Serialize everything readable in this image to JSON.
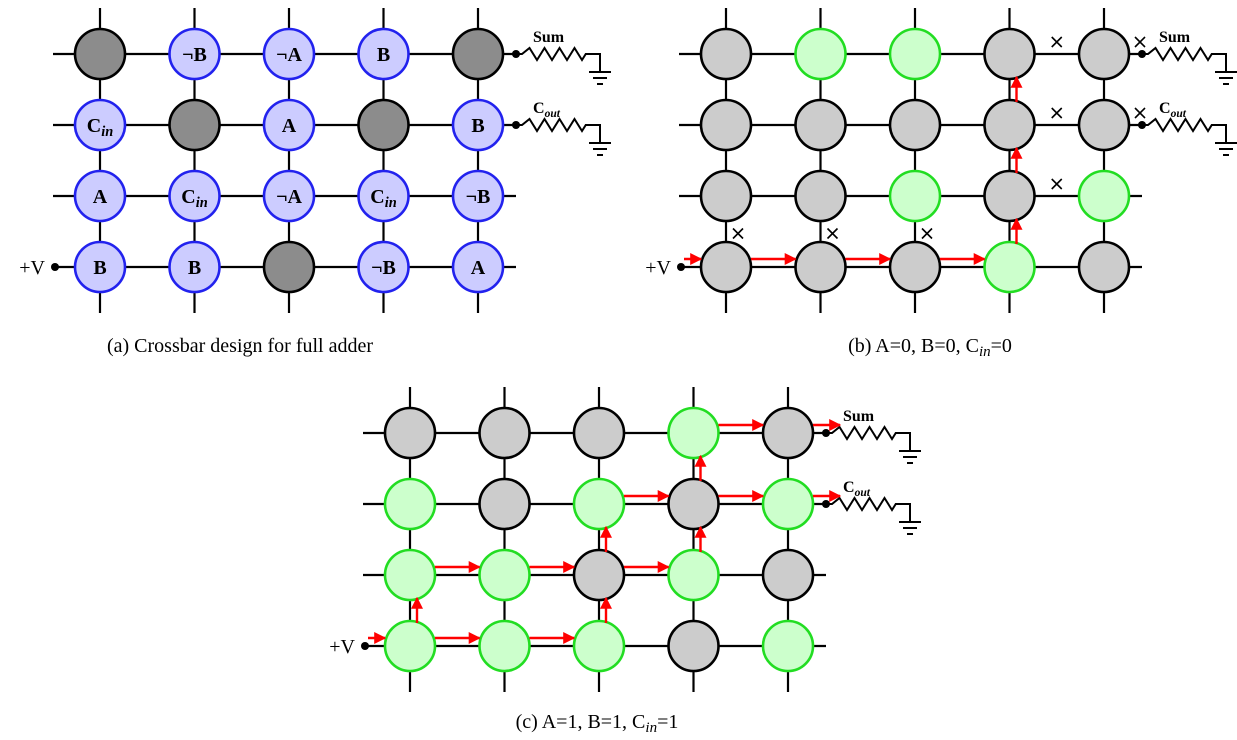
{
  "colors": {
    "wire": "#000000",
    "node_blue_fill": "#ccccff",
    "node_blue_stroke": "#2222ee",
    "node_dark_fill": "#8c8c8c",
    "node_gray_fill": "#cccccc",
    "node_green_fill": "#ccffcc",
    "node_green_stroke": "#22dd22",
    "arrow": "#ff0000"
  },
  "panels": [
    {
      "id": "a",
      "caption": "(a) Crossbar design for full adder",
      "supply_label": "+V",
      "outputs": [
        {
          "row": 0,
          "main": "Sum",
          "sub": ""
        },
        {
          "row": 1,
          "main": "C",
          "sub": "out"
        }
      ],
      "rows": [
        [
          {
            "s": "dark",
            "t": "",
            "sub": ""
          },
          {
            "s": "blue",
            "t": "¬B",
            "sub": ""
          },
          {
            "s": "blue",
            "t": "¬A",
            "sub": ""
          },
          {
            "s": "blue",
            "t": "B",
            "sub": ""
          },
          {
            "s": "dark",
            "t": "",
            "sub": ""
          }
        ],
        [
          {
            "s": "blue",
            "t": "C",
            "sub": "in"
          },
          {
            "s": "dark",
            "t": "",
            "sub": ""
          },
          {
            "s": "blue",
            "t": "A",
            "sub": ""
          },
          {
            "s": "dark",
            "t": "",
            "sub": ""
          },
          {
            "s": "blue",
            "t": "B",
            "sub": ""
          }
        ],
        [
          {
            "s": "blue",
            "t": "A",
            "sub": ""
          },
          {
            "s": "blue",
            "t": "C",
            "sub": "in"
          },
          {
            "s": "blue",
            "t": "¬A",
            "sub": ""
          },
          {
            "s": "blue",
            "t": "C",
            "sub": "in"
          },
          {
            "s": "blue",
            "t": "¬B",
            "sub": ""
          }
        ],
        [
          {
            "s": "blue",
            "t": "B",
            "sub": ""
          },
          {
            "s": "blue",
            "t": "B",
            "sub": ""
          },
          {
            "s": "dark",
            "t": "",
            "sub": ""
          },
          {
            "s": "blue",
            "t": "¬B",
            "sub": ""
          },
          {
            "s": "blue",
            "t": "A",
            "sub": ""
          }
        ]
      ],
      "arrows": [],
      "xmarks": []
    },
    {
      "id": "b",
      "caption": "(b) A=0, B=0, C",
      "caption_sub": "in",
      "caption_tail": "=0",
      "supply_label": "+V",
      "outputs": [
        {
          "row": 0,
          "main": "Sum",
          "sub": ""
        },
        {
          "row": 1,
          "main": "C",
          "sub": "out"
        }
      ],
      "rows": [
        [
          {
            "s": "gray"
          },
          {
            "s": "green"
          },
          {
            "s": "green"
          },
          {
            "s": "gray"
          },
          {
            "s": "gray"
          }
        ],
        [
          {
            "s": "gray"
          },
          {
            "s": "gray"
          },
          {
            "s": "gray"
          },
          {
            "s": "gray"
          },
          {
            "s": "gray"
          }
        ],
        [
          {
            "s": "gray"
          },
          {
            "s": "gray"
          },
          {
            "s": "green"
          },
          {
            "s": "gray"
          },
          {
            "s": "green"
          }
        ],
        [
          {
            "s": "gray"
          },
          {
            "s": "gray"
          },
          {
            "s": "gray"
          },
          {
            "s": "green"
          },
          {
            "s": "gray"
          }
        ]
      ],
      "arrows": [
        {
          "kind": "h",
          "row": 3,
          "from": -1,
          "to": 0
        },
        {
          "kind": "h",
          "row": 3,
          "from": 0,
          "to": 1
        },
        {
          "kind": "h",
          "row": 3,
          "from": 1,
          "to": 2
        },
        {
          "kind": "h",
          "row": 3,
          "from": 2,
          "to": 3
        },
        {
          "kind": "v",
          "col": 3,
          "from": 3,
          "to": 2
        },
        {
          "kind": "v",
          "col": 3,
          "from": 2,
          "to": 1
        },
        {
          "kind": "v",
          "col": 3,
          "from": 1,
          "to": 0
        }
      ],
      "xmarks": [
        {
          "kind": "v",
          "col": 0,
          "from": 3,
          "to": 2
        },
        {
          "kind": "v",
          "col": 1,
          "from": 3,
          "to": 2
        },
        {
          "kind": "v",
          "col": 2,
          "from": 3,
          "to": 2
        },
        {
          "kind": "h",
          "row": 2,
          "from": 3,
          "to": 4
        },
        {
          "kind": "h",
          "row": 1,
          "from": 3,
          "to": 4
        },
        {
          "kind": "h",
          "row": 0,
          "from": 3,
          "to": 4
        },
        {
          "kind": "h",
          "row": 1,
          "from": 4,
          "to": 5
        },
        {
          "kind": "h",
          "row": 0,
          "from": 4,
          "to": 5
        }
      ]
    },
    {
      "id": "c",
      "caption": "(c) A=1, B=1, C",
      "caption_sub": "in",
      "caption_tail": "=1",
      "supply_label": "+V",
      "outputs": [
        {
          "row": 0,
          "main": "Sum",
          "sub": ""
        },
        {
          "row": 1,
          "main": "C",
          "sub": "out"
        }
      ],
      "rows": [
        [
          {
            "s": "gray"
          },
          {
            "s": "gray"
          },
          {
            "s": "gray"
          },
          {
            "s": "green"
          },
          {
            "s": "gray"
          }
        ],
        [
          {
            "s": "green"
          },
          {
            "s": "gray"
          },
          {
            "s": "green"
          },
          {
            "s": "gray"
          },
          {
            "s": "green"
          }
        ],
        [
          {
            "s": "green"
          },
          {
            "s": "green"
          },
          {
            "s": "gray"
          },
          {
            "s": "green"
          },
          {
            "s": "gray"
          }
        ],
        [
          {
            "s": "green"
          },
          {
            "s": "green"
          },
          {
            "s": "green"
          },
          {
            "s": "gray"
          },
          {
            "s": "green"
          }
        ]
      ],
      "arrows": [
        {
          "kind": "h",
          "row": 3,
          "from": -1,
          "to": 0
        },
        {
          "kind": "h",
          "row": 3,
          "from": 0,
          "to": 1
        },
        {
          "kind": "h",
          "row": 3,
          "from": 1,
          "to": 2
        },
        {
          "kind": "v",
          "col": 0,
          "from": 3,
          "to": 2
        },
        {
          "kind": "h",
          "row": 2,
          "from": 0,
          "to": 1
        },
        {
          "kind": "h",
          "row": 2,
          "from": 1,
          "to": 2
        },
        {
          "kind": "v",
          "col": 2,
          "from": 3,
          "to": 2
        },
        {
          "kind": "h",
          "row": 2,
          "from": 2,
          "to": 3
        },
        {
          "kind": "v",
          "col": 2,
          "from": 2,
          "to": 1
        },
        {
          "kind": "h",
          "row": 1,
          "from": 2,
          "to": 3
        },
        {
          "kind": "v",
          "col": 3,
          "from": 2,
          "to": 1
        },
        {
          "kind": "h",
          "row": 1,
          "from": 3,
          "to": 4
        },
        {
          "kind": "h",
          "row": 1,
          "from": 4,
          "to": 5
        },
        {
          "kind": "v",
          "col": 3,
          "from": 1,
          "to": 0
        },
        {
          "kind": "h",
          "row": 0,
          "from": 3,
          "to": 4
        },
        {
          "kind": "h",
          "row": 0,
          "from": 4,
          "to": 5
        }
      ],
      "xmarks": []
    }
  ]
}
